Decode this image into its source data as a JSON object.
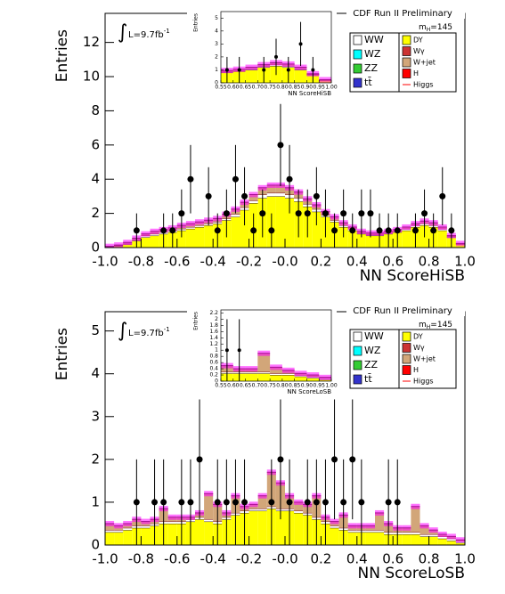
{
  "chart_data": [
    {
      "type": "histogram",
      "title": "CDF Run II Preliminary",
      "xlabel": "NN ScoreHiSB",
      "ylabel": "Entries",
      "luminosity": {
        "text": "L=9.7fb",
        "sup": "-1"
      },
      "mass": {
        "symbol": "m",
        "sub": "H",
        "value": "=145"
      },
      "bins": [
        -1,
        -0.95,
        -0.9,
        -0.85,
        -0.8,
        -0.75,
        -0.7,
        -0.65,
        -0.6,
        -0.55,
        -0.5,
        -0.45,
        -0.4,
        -0.35,
        -0.3,
        -0.25,
        -0.2,
        -0.15,
        -0.1,
        -0.05,
        0,
        0.05,
        0.1,
        0.15,
        0.2,
        0.25,
        0.3,
        0.35,
        0.4,
        0.45,
        0.5,
        0.55,
        0.6,
        0.65,
        0.7,
        0.75,
        0.8,
        0.85,
        0.9,
        0.95,
        1
      ],
      "series": [
        {
          "name": "DY",
          "color": "#ffff00",
          "values": [
            0.05,
            0.1,
            0.2,
            0.4,
            0.6,
            0.7,
            0.8,
            0.9,
            1.0,
            1.1,
            1.2,
            1.3,
            1.4,
            1.6,
            1.8,
            2.2,
            2.6,
            2.9,
            3.0,
            3.0,
            2.9,
            2.7,
            2.4,
            2.1,
            1.8,
            1.5,
            1.2,
            1.0,
            0.8,
            0.7,
            0.7,
            0.8,
            0.9,
            1.0,
            1.2,
            1.3,
            1.2,
            1.0,
            0.6,
            0.2
          ]
        },
        {
          "name": "WW",
          "color": "#ffffff",
          "values": [
            0.02,
            0.03,
            0.05,
            0.05,
            0.1,
            0.1,
            0.1,
            0.1,
            0.1,
            0.1,
            0.1,
            0.1,
            0.1,
            0.1,
            0.15,
            0.15,
            0.15,
            0.2,
            0.2,
            0.2,
            0.2,
            0.2,
            0.15,
            0.15,
            0.1,
            0.1,
            0.1,
            0.1,
            0.05,
            0.05,
            0.05,
            0.05,
            0.05,
            0.1,
            0.1,
            0.1,
            0.1,
            0.1,
            0.05,
            0.02
          ]
        },
        {
          "name": "W+jet",
          "color": "#d2a679",
          "values": [
            0,
            0.02,
            0.05,
            0.1,
            0.1,
            0.15,
            0.15,
            0.15,
            0.2,
            0.2,
            0.2,
            0.2,
            0.2,
            0.25,
            0.3,
            0.3,
            0.35,
            0.4,
            0.45,
            0.45,
            0.4,
            0.35,
            0.3,
            0.25,
            0.2,
            0.2,
            0.15,
            0.1,
            0.1,
            0.1,
            0.1,
            0.1,
            0.1,
            0.1,
            0.1,
            0.15,
            0.15,
            0.1,
            0.05,
            0.02
          ]
        }
      ],
      "data_points": {
        "values": [
          null,
          null,
          null,
          1,
          null,
          null,
          1,
          1,
          2,
          4,
          null,
          3,
          1,
          2,
          4,
          3,
          1,
          2,
          1,
          6,
          4,
          2,
          2,
          3,
          2,
          1,
          2,
          1,
          2,
          2,
          1,
          1,
          1,
          null,
          1,
          2,
          1,
          3,
          1,
          null
        ],
        "errors": [
          null,
          null,
          null,
          1,
          null,
          null,
          1,
          1,
          1.4,
          2,
          null,
          1.7,
          1,
          1.4,
          2,
          1.7,
          1,
          1.4,
          1,
          2.4,
          2,
          1.4,
          1.4,
          1.7,
          1.4,
          1,
          1.4,
          1,
          1.4,
          1.4,
          1,
          1,
          1,
          null,
          1,
          1.4,
          1,
          1.7,
          1,
          null
        ]
      },
      "other_legend_entries": [
        {
          "name": "WZ",
          "color": "#00ffff"
        },
        {
          "name": "ZZ",
          "color": "#33cc33"
        },
        {
          "name": "tt̄",
          "color": "#3333cc"
        },
        {
          "name": "Wγ",
          "color": "#cc3333"
        },
        {
          "name": "H",
          "color": "#ff0000"
        },
        {
          "name": "Higgs",
          "color": "#ff0000"
        }
      ],
      "band_color": "#ff00ff",
      "xlim": [
        -1,
        1
      ],
      "ylim": [
        0,
        13.7
      ],
      "xticks": [
        {
          "value": -1,
          "label": "-1.0"
        },
        -0.8,
        -0.6,
        -0.4,
        -0.2,
        {
          "value": 0,
          "label": "-0.0"
        },
        0.2,
        0.4,
        0.6,
        0.8,
        {
          "value": 1,
          "label": "1.0"
        }
      ],
      "yticks": [
        0,
        2,
        4,
        6,
        8,
        10,
        12
      ],
      "inset": {
        "xlabel": "NN ScoreHiSB",
        "ylabel": "Entries",
        "xlim": [
          0.55,
          1
        ],
        "ylim": [
          0,
          5.5
        ],
        "xticks": [
          0.55,
          {
            "value": 0.6,
            "label": "0.60"
          },
          0.65,
          {
            "value": 0.7,
            "label": "0.70"
          },
          0.75,
          {
            "value": 0.8,
            "label": "0.80"
          },
          0.85,
          {
            "value": 0.9,
            "label": "0.90"
          },
          0.95,
          {
            "value": 1,
            "label": "1.00"
          }
        ],
        "yticks": [
          0,
          1,
          2,
          3,
          4,
          5
        ]
      }
    },
    {
      "type": "histogram",
      "title": "CDF Run II Preliminary",
      "xlabel": "NN ScoreLoSB",
      "ylabel": "Entries",
      "luminosity": {
        "text": "L=9.7fb",
        "sup": "-1"
      },
      "mass": {
        "symbol": "m",
        "sub": "H",
        "value": "=145"
      },
      "bins": [
        -1,
        -0.95,
        -0.9,
        -0.85,
        -0.8,
        -0.75,
        -0.7,
        -0.65,
        -0.6,
        -0.55,
        -0.5,
        -0.45,
        -0.4,
        -0.35,
        -0.3,
        -0.25,
        -0.2,
        -0.15,
        -0.1,
        -0.05,
        0,
        0.05,
        0.1,
        0.15,
        0.2,
        0.25,
        0.3,
        0.35,
        0.4,
        0.45,
        0.5,
        0.55,
        0.6,
        0.65,
        0.7,
        0.75,
        0.8,
        0.85,
        0.9,
        0.95,
        1
      ],
      "series": [
        {
          "name": "DY",
          "color": "#ffff00",
          "values": [
            0.3,
            0.3,
            0.35,
            0.4,
            0.4,
            0.45,
            0.5,
            0.5,
            0.5,
            0.55,
            0.6,
            0.55,
            0.5,
            0.6,
            0.7,
            0.75,
            0.8,
            0.8,
            0.85,
            0.8,
            0.8,
            0.75,
            0.7,
            0.6,
            0.5,
            0.4,
            0.35,
            0.3,
            0.3,
            0.3,
            0.3,
            0.25,
            0.25,
            0.25,
            0.25,
            0.2,
            0.2,
            0.15,
            0.1,
            0.05
          ]
        },
        {
          "name": "WW",
          "color": "#ffffff",
          "values": [
            0.05,
            0.05,
            0.05,
            0.05,
            0.05,
            0.05,
            0.05,
            0.05,
            0.05,
            0.05,
            0.05,
            0.05,
            0.05,
            0.05,
            0.05,
            0.05,
            0.05,
            0.05,
            0.05,
            0.05,
            0.05,
            0.05,
            0.05,
            0.05,
            0.05,
            0.05,
            0.05,
            0.05,
            0.05,
            0.05,
            0.05,
            0.05,
            0.05,
            0.05,
            0.05,
            0.05,
            0.05,
            0.05,
            0.05,
            0.05
          ]
        },
        {
          "name": "W+jet",
          "color": "#d2a679",
          "values": [
            0.15,
            0.1,
            0.1,
            0.15,
            0.1,
            0.1,
            0.3,
            0.1,
            0.1,
            0.05,
            0.1,
            0.6,
            0.4,
            0.1,
            0.4,
            0.1,
            0.1,
            0.3,
            0.8,
            0.6,
            0.3,
            0.2,
            0.2,
            0.5,
            0.1,
            0.1,
            0.3,
            0.1,
            0.1,
            0.1,
            0.4,
            0.2,
            0.1,
            0.1,
            0.6,
            0.2,
            0.1,
            0.05,
            0.05,
            0.02
          ]
        }
      ],
      "data_points": {
        "values": [
          null,
          null,
          null,
          1,
          null,
          1,
          1,
          null,
          1,
          1,
          2,
          null,
          1,
          1,
          1,
          1,
          null,
          null,
          1,
          2,
          1,
          null,
          1,
          1,
          1,
          2,
          1,
          2,
          1,
          null,
          null,
          1,
          1,
          null,
          null,
          null,
          null,
          null,
          null,
          null
        ],
        "errors": [
          null,
          null,
          null,
          1,
          null,
          1,
          1,
          null,
          1,
          1,
          1.4,
          null,
          1,
          1,
          1,
          1,
          null,
          null,
          1,
          1.4,
          1,
          null,
          1,
          1,
          1,
          1.4,
          1,
          1.4,
          1,
          null,
          null,
          1,
          1,
          null,
          null,
          null,
          null,
          null,
          null,
          null
        ]
      },
      "other_legend_entries": [
        {
          "name": "WZ",
          "color": "#00ffff"
        },
        {
          "name": "ZZ",
          "color": "#33cc33"
        },
        {
          "name": "tt̄",
          "color": "#3333cc"
        },
        {
          "name": "Wγ",
          "color": "#cc3333"
        },
        {
          "name": "H",
          "color": "#ff0000"
        },
        {
          "name": "Higgs",
          "color": "#ff0000"
        }
      ],
      "band_color": "#ff00ff",
      "xlim": [
        -1,
        1
      ],
      "ylim": [
        0,
        5.45
      ],
      "xticks": [
        {
          "value": -1,
          "label": "-1.0"
        },
        -0.8,
        -0.6,
        -0.4,
        -0.2,
        {
          "value": 0,
          "label": "-0.0"
        },
        0.2,
        0.4,
        0.6,
        0.8,
        {
          "value": 1,
          "label": "1.0"
        }
      ],
      "yticks": [
        0,
        1,
        2,
        3,
        4,
        5
      ],
      "inset": {
        "xlabel": "NN ScoreLoSB",
        "ylabel": "Entries",
        "xlim": [
          0.55,
          1
        ],
        "ylim": [
          0,
          2.3
        ],
        "xticks": [
          0.55,
          {
            "value": 0.6,
            "label": "0.60"
          },
          0.65,
          {
            "value": 0.7,
            "label": "0.70"
          },
          0.75,
          {
            "value": 0.8,
            "label": "0.80"
          },
          0.85,
          {
            "value": 0.9,
            "label": "0.90"
          },
          0.95,
          {
            "value": 1,
            "label": "1.00"
          }
        ],
        "yticks": [
          0,
          0.2,
          0.4,
          0.6,
          0.8,
          1,
          1.2,
          1.4,
          1.6,
          1.8,
          2,
          2.2
        ]
      }
    }
  ]
}
